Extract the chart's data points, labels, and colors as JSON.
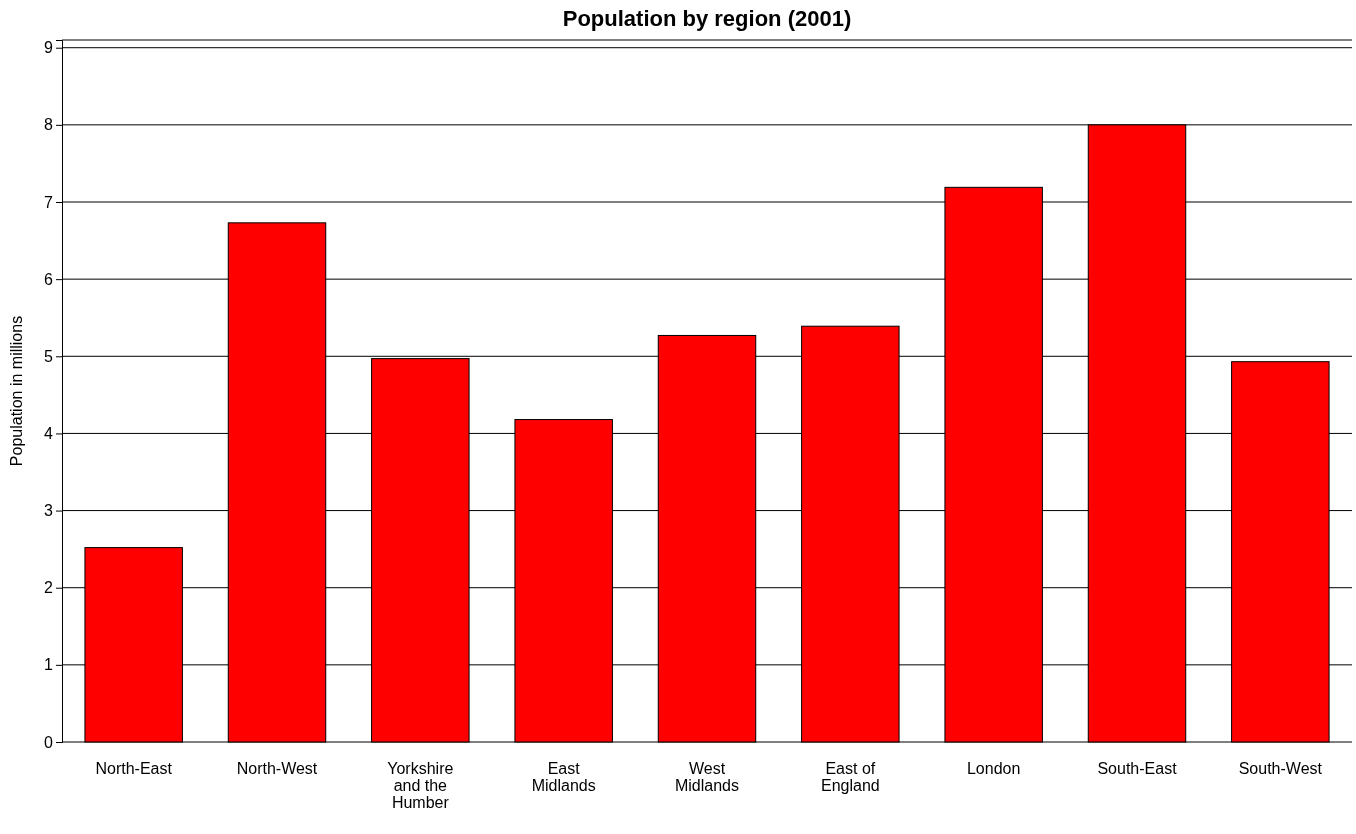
{
  "chart_data": {
    "type": "bar",
    "title": "Population by region (2001)",
    "ylabel": "Population in millions",
    "categories": [
      "North-East",
      "North-West",
      "Yorkshire and the Humber",
      "East Midlands",
      "West Midlands",
      "East of England",
      "London",
      "South-East",
      "South-West"
    ],
    "values": [
      2.52,
      6.73,
      4.97,
      4.18,
      5.27,
      5.39,
      7.19,
      8.0,
      4.93
    ],
    "color": "#ff0000",
    "ylim": [
      0,
      9.1
    ],
    "yticks": [
      0,
      1,
      2,
      3,
      4,
      5,
      6,
      7,
      8,
      9
    ],
    "grid": "y"
  }
}
